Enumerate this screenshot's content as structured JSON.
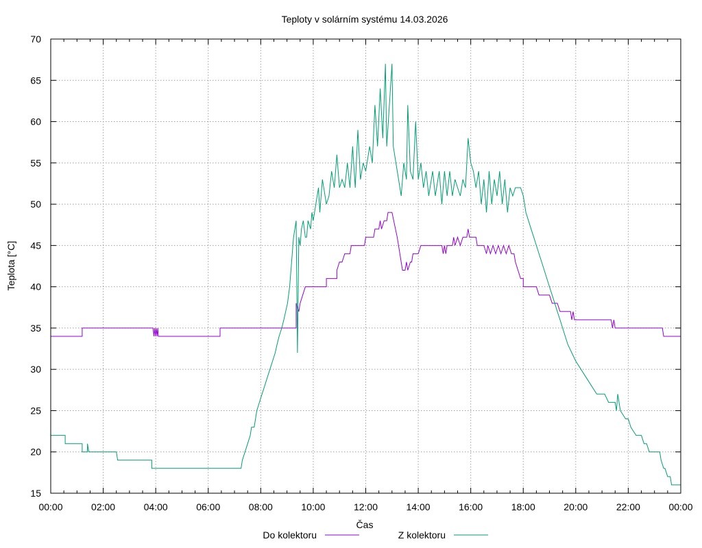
{
  "chart_data": {
    "type": "line",
    "title": "Teploty v solárním systému 14.03.2026",
    "xlabel": "Čas",
    "ylabel": "Teplota [°C]",
    "xlim": [
      0,
      24
    ],
    "ylim": [
      15,
      70
    ],
    "grid": true,
    "legend_position": "bottom-center",
    "xticks": [
      {
        "value": 0,
        "label": "00:00"
      },
      {
        "value": 2,
        "label": "02:00"
      },
      {
        "value": 4,
        "label": "04:00"
      },
      {
        "value": 6,
        "label": "06:00"
      },
      {
        "value": 8,
        "label": "08:00"
      },
      {
        "value": 10,
        "label": "10:00"
      },
      {
        "value": 12,
        "label": "12:00"
      },
      {
        "value": 14,
        "label": "14:00"
      },
      {
        "value": 16,
        "label": "16:00"
      },
      {
        "value": 18,
        "label": "18:00"
      },
      {
        "value": 20,
        "label": "20:00"
      },
      {
        "value": 22,
        "label": "22:00"
      },
      {
        "value": 24,
        "label": "00:00"
      }
    ],
    "yticks": [
      {
        "value": 15,
        "label": "15"
      },
      {
        "value": 20,
        "label": "20"
      },
      {
        "value": 25,
        "label": "25"
      },
      {
        "value": 30,
        "label": "30"
      },
      {
        "value": 35,
        "label": "35"
      },
      {
        "value": 40,
        "label": "40"
      },
      {
        "value": 45,
        "label": "45"
      },
      {
        "value": 50,
        "label": "50"
      },
      {
        "value": 55,
        "label": "55"
      },
      {
        "value": 60,
        "label": "60"
      },
      {
        "value": 65,
        "label": "65"
      },
      {
        "value": 70,
        "label": "70"
      }
    ],
    "series": [
      {
        "name": "Do kolektoru",
        "color": "#9400d3",
        "points": [
          [
            0.0,
            34
          ],
          [
            1.2,
            34
          ],
          [
            1.2,
            35
          ],
          [
            3.9,
            35
          ],
          [
            3.93,
            34
          ],
          [
            3.96,
            35
          ],
          [
            3.99,
            34
          ],
          [
            4.02,
            35
          ],
          [
            4.05,
            34
          ],
          [
            4.08,
            35
          ],
          [
            4.1,
            34
          ],
          [
            6.45,
            34
          ],
          [
            6.45,
            35
          ],
          [
            9.1,
            35
          ],
          [
            9.1,
            35
          ],
          [
            9.35,
            35
          ],
          [
            9.35,
            38
          ],
          [
            9.45,
            37
          ],
          [
            9.5,
            38
          ],
          [
            9.6,
            39
          ],
          [
            9.7,
            40
          ],
          [
            10.5,
            40
          ],
          [
            10.5,
            41
          ],
          [
            10.9,
            41
          ],
          [
            10.9,
            42
          ],
          [
            11.0,
            43
          ],
          [
            11.1,
            43
          ],
          [
            11.2,
            44
          ],
          [
            11.35,
            44
          ],
          [
            11.4,
            44
          ],
          [
            11.45,
            45
          ],
          [
            11.9,
            45
          ],
          [
            11.95,
            45
          ],
          [
            12.0,
            46
          ],
          [
            12.3,
            46
          ],
          [
            12.35,
            47
          ],
          [
            12.5,
            47
          ],
          [
            12.55,
            48
          ],
          [
            12.6,
            47
          ],
          [
            12.7,
            48
          ],
          [
            12.8,
            48
          ],
          [
            12.85,
            49
          ],
          [
            13.0,
            49
          ],
          [
            13.2,
            46
          ],
          [
            13.3,
            44
          ],
          [
            13.35,
            43
          ],
          [
            13.4,
            42
          ],
          [
            13.5,
            42
          ],
          [
            13.55,
            43
          ],
          [
            13.6,
            42
          ],
          [
            13.7,
            43
          ],
          [
            13.75,
            43
          ],
          [
            13.8,
            44
          ],
          [
            14.0,
            44
          ],
          [
            14.1,
            45
          ],
          [
            14.9,
            45
          ],
          [
            14.95,
            44
          ],
          [
            15.0,
            45
          ],
          [
            15.05,
            44
          ],
          [
            15.1,
            45
          ],
          [
            15.3,
            45
          ],
          [
            15.35,
            46
          ],
          [
            15.4,
            45
          ],
          [
            15.5,
            46
          ],
          [
            15.6,
            45
          ],
          [
            15.7,
            46
          ],
          [
            15.85,
            46
          ],
          [
            15.9,
            47
          ],
          [
            15.95,
            46
          ],
          [
            16.2,
            46
          ],
          [
            16.25,
            45
          ],
          [
            16.5,
            45
          ],
          [
            16.6,
            44
          ],
          [
            16.65,
            45
          ],
          [
            16.75,
            44
          ],
          [
            16.85,
            45
          ],
          [
            16.95,
            44
          ],
          [
            17.05,
            45
          ],
          [
            17.15,
            44
          ],
          [
            17.25,
            45
          ],
          [
            17.35,
            44
          ],
          [
            17.45,
            45
          ],
          [
            17.55,
            44
          ],
          [
            17.65,
            44
          ],
          [
            17.7,
            43
          ],
          [
            17.8,
            42
          ],
          [
            17.9,
            41
          ],
          [
            18.0,
            41
          ],
          [
            18.0,
            40
          ],
          [
            18.5,
            40
          ],
          [
            18.6,
            39
          ],
          [
            19.0,
            39
          ],
          [
            19.1,
            38
          ],
          [
            19.3,
            38
          ],
          [
            19.4,
            37
          ],
          [
            19.8,
            37
          ],
          [
            19.85,
            36
          ],
          [
            19.9,
            37
          ],
          [
            19.95,
            36
          ],
          [
            20.0,
            36
          ],
          [
            21.35,
            36
          ],
          [
            21.4,
            35
          ],
          [
            21.45,
            36
          ],
          [
            21.5,
            35
          ],
          [
            22.5,
            35
          ],
          [
            23.3,
            35
          ],
          [
            23.35,
            34
          ],
          [
            24.0,
            34
          ]
        ]
      },
      {
        "name": "Z kolektoru",
        "color": "#009e73",
        "points": [
          [
            0.0,
            22
          ],
          [
            0.55,
            22
          ],
          [
            0.55,
            21
          ],
          [
            1.2,
            21
          ],
          [
            1.2,
            20
          ],
          [
            1.4,
            20
          ],
          [
            1.4,
            21
          ],
          [
            1.45,
            20
          ],
          [
            2.5,
            20
          ],
          [
            2.55,
            19
          ],
          [
            3.85,
            19
          ],
          [
            3.85,
            18
          ],
          [
            7.25,
            18
          ],
          [
            7.3,
            19
          ],
          [
            7.4,
            20
          ],
          [
            7.5,
            21
          ],
          [
            7.6,
            22
          ],
          [
            7.65,
            23
          ],
          [
            7.75,
            23
          ],
          [
            7.8,
            24
          ],
          [
            7.85,
            25
          ],
          [
            7.95,
            26
          ],
          [
            8.05,
            27
          ],
          [
            8.15,
            28
          ],
          [
            8.25,
            29
          ],
          [
            8.35,
            30
          ],
          [
            8.45,
            31
          ],
          [
            8.55,
            32
          ],
          [
            8.62,
            33
          ],
          [
            8.7,
            34
          ],
          [
            8.8,
            35
          ],
          [
            8.88,
            36
          ],
          [
            8.95,
            37
          ],
          [
            9.02,
            38
          ],
          [
            9.1,
            40
          ],
          [
            9.15,
            42
          ],
          [
            9.2,
            44
          ],
          [
            9.25,
            46
          ],
          [
            9.3,
            47
          ],
          [
            9.35,
            48
          ],
          [
            9.4,
            32
          ],
          [
            9.45,
            46
          ],
          [
            9.5,
            45
          ],
          [
            9.55,
            47
          ],
          [
            9.62,
            48
          ],
          [
            9.7,
            46
          ],
          [
            9.75,
            46
          ],
          [
            9.8,
            48
          ],
          [
            9.9,
            47
          ],
          [
            9.95,
            49
          ],
          [
            10.0,
            48
          ],
          [
            10.1,
            50
          ],
          [
            10.2,
            52
          ],
          [
            10.25,
            49
          ],
          [
            10.35,
            53
          ],
          [
            10.5,
            50
          ],
          [
            10.6,
            51
          ],
          [
            10.7,
            54
          ],
          [
            10.8,
            52
          ],
          [
            10.9,
            56
          ],
          [
            11.0,
            52
          ],
          [
            11.1,
            53
          ],
          [
            11.2,
            52
          ],
          [
            11.3,
            55
          ],
          [
            11.4,
            52
          ],
          [
            11.5,
            57
          ],
          [
            11.6,
            52
          ],
          [
            11.7,
            59
          ],
          [
            11.8,
            53
          ],
          [
            11.9,
            55
          ],
          [
            12.0,
            54
          ],
          [
            12.15,
            57
          ],
          [
            12.25,
            55
          ],
          [
            12.35,
            62
          ],
          [
            12.45,
            57
          ],
          [
            12.55,
            64
          ],
          [
            12.65,
            58
          ],
          [
            12.75,
            67
          ],
          [
            12.8,
            57
          ],
          [
            12.9,
            62
          ],
          [
            13.0,
            67
          ],
          [
            13.05,
            57
          ],
          [
            13.15,
            55
          ],
          [
            13.25,
            53
          ],
          [
            13.35,
            51
          ],
          [
            13.45,
            55
          ],
          [
            13.55,
            53
          ],
          [
            13.6,
            62
          ],
          [
            13.7,
            54
          ],
          [
            13.8,
            53
          ],
          [
            13.9,
            60
          ],
          [
            14.0,
            53
          ],
          [
            14.1,
            55
          ],
          [
            14.2,
            52
          ],
          [
            14.3,
            54
          ],
          [
            14.4,
            51
          ],
          [
            14.55,
            54
          ],
          [
            14.65,
            51
          ],
          [
            14.8,
            54
          ],
          [
            14.9,
            50
          ],
          [
            15.0,
            54
          ],
          [
            15.1,
            51
          ],
          [
            15.2,
            54
          ],
          [
            15.3,
            51
          ],
          [
            15.4,
            53
          ],
          [
            15.5,
            52
          ],
          [
            15.6,
            51
          ],
          [
            15.7,
            53
          ],
          [
            15.8,
            52
          ],
          [
            15.9,
            58
          ],
          [
            16.0,
            55
          ],
          [
            16.1,
            54
          ],
          [
            16.2,
            52
          ],
          [
            16.3,
            54
          ],
          [
            16.4,
            50
          ],
          [
            16.5,
            53
          ],
          [
            16.6,
            49
          ],
          [
            16.7,
            54
          ],
          [
            16.8,
            50
          ],
          [
            16.9,
            53
          ],
          [
            17.0,
            51
          ],
          [
            17.1,
            54
          ],
          [
            17.2,
            50
          ],
          [
            17.3,
            53
          ],
          [
            17.4,
            49
          ],
          [
            17.5,
            52
          ],
          [
            17.6,
            51
          ],
          [
            17.7,
            52
          ],
          [
            17.8,
            52
          ],
          [
            17.9,
            52
          ],
          [
            18.0,
            51
          ],
          [
            18.05,
            50
          ],
          [
            18.1,
            49
          ],
          [
            18.2,
            48
          ],
          [
            18.3,
            47
          ],
          [
            18.4,
            46
          ],
          [
            18.5,
            45
          ],
          [
            18.6,
            44
          ],
          [
            18.7,
            43
          ],
          [
            18.8,
            42
          ],
          [
            18.9,
            41
          ],
          [
            19.0,
            40
          ],
          [
            19.1,
            39
          ],
          [
            19.2,
            38
          ],
          [
            19.3,
            37
          ],
          [
            19.4,
            36
          ],
          [
            19.5,
            35
          ],
          [
            19.6,
            34
          ],
          [
            19.7,
            33
          ],
          [
            19.85,
            32
          ],
          [
            20.0,
            31
          ],
          [
            20.2,
            30
          ],
          [
            20.4,
            29
          ],
          [
            20.6,
            28
          ],
          [
            20.8,
            27
          ],
          [
            21.1,
            27
          ],
          [
            21.25,
            26
          ],
          [
            21.5,
            26
          ],
          [
            21.55,
            25
          ],
          [
            21.6,
            27
          ],
          [
            21.7,
            25
          ],
          [
            21.9,
            24
          ],
          [
            22.0,
            24
          ],
          [
            22.1,
            23
          ],
          [
            22.3,
            22
          ],
          [
            22.5,
            22
          ],
          [
            22.6,
            21
          ],
          [
            22.7,
            21
          ],
          [
            22.8,
            20
          ],
          [
            23.2,
            20
          ],
          [
            23.25,
            19
          ],
          [
            23.35,
            18
          ],
          [
            23.4,
            18
          ],
          [
            23.5,
            17
          ],
          [
            23.55,
            17
          ],
          [
            23.6,
            17
          ],
          [
            23.65,
            16
          ],
          [
            24.0,
            16
          ]
        ]
      }
    ]
  }
}
